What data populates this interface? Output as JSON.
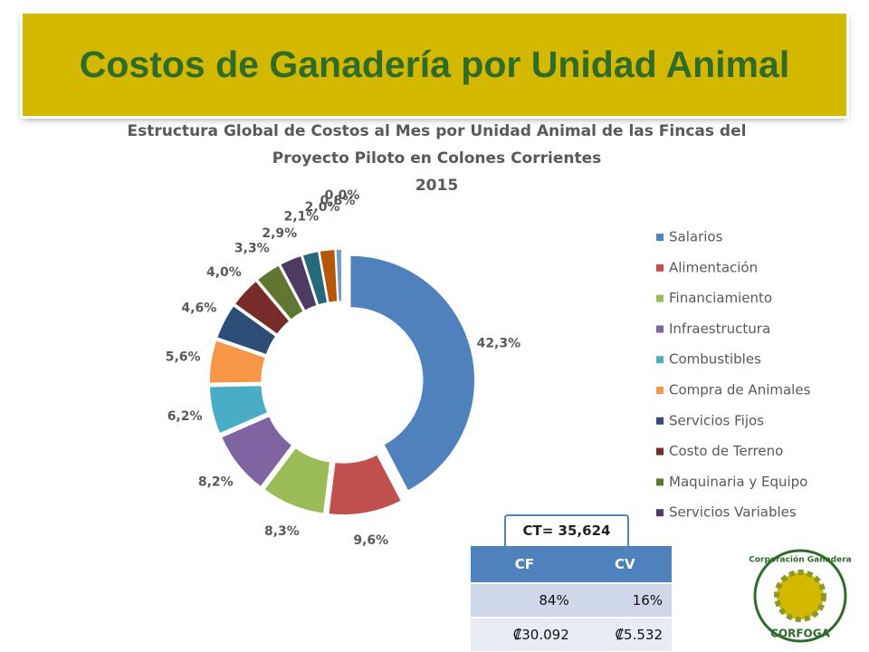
{
  "header": {
    "title": "Costos de Ganadería por Unidad Animal"
  },
  "chart_data": {
    "type": "donut",
    "title": "Estructura Global de Costos al Mes por Unidad Animal de las Fincas del Proyecto Piloto en Colones Corrientes",
    "subtitle": "2015",
    "categories": [
      "Salarios",
      "Alimentación",
      "Financiamiento",
      "Infraestructura",
      "Combustibles",
      "Compra de Animales",
      "Servicios Fijos",
      "Costo de Terreno",
      "Maquinaria y Equipo",
      "Servicios Variables",
      null,
      null,
      null,
      null
    ],
    "values": [
      42.3,
      9.6,
      8.3,
      8.2,
      6.2,
      5.6,
      4.6,
      4.0,
      3.3,
      2.9,
      2.1,
      2.0,
      0.8,
      0.0
    ],
    "value_labels": [
      "42,3%",
      "9,6%",
      "8,3%",
      "8,2%",
      "6,2%",
      "5,6%",
      "4,6%",
      "4,0%",
      "3,3%",
      "2,9%",
      "2,1%",
      "2,0%",
      "0,8%",
      "0,0%"
    ],
    "colors": [
      "#4f81bd",
      "#c0504d",
      "#9bbb59",
      "#8064a2",
      "#4bacc6",
      "#f79646",
      "#2c4d75",
      "#772c2a",
      "#5f7530",
      "#4d3b62",
      "#276a7c",
      "#b65708",
      "#729aca",
      "#cd7371"
    ],
    "legend": "right"
  },
  "total_label": "CT= 35,624",
  "table": {
    "header": [
      "CF",
      "CV"
    ],
    "rows": [
      [
        "84%",
        "16%"
      ],
      [
        "₡30.092",
        "₡5.532"
      ]
    ]
  },
  "logo": {
    "top": "Corporación Ganadera",
    "bottom": "CORFOGA"
  }
}
